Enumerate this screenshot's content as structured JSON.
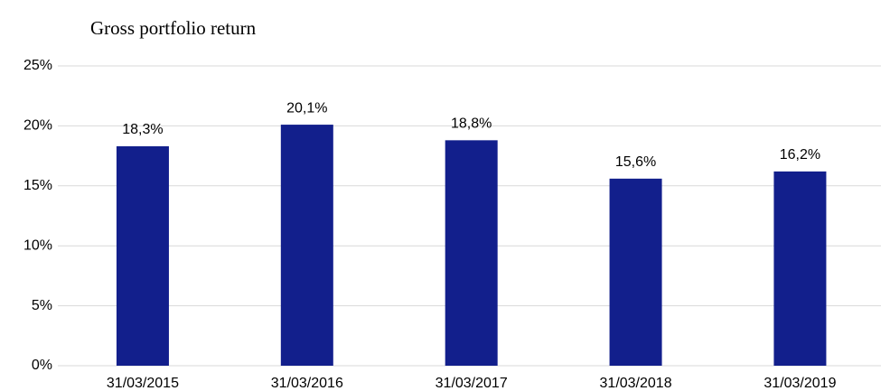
{
  "chart_data": {
    "type": "bar",
    "title": "Gross portfolio return",
    "categories": [
      "31/03/2015",
      "31/03/2016",
      "31/03/2017",
      "31/03/2018",
      "31/03/2019"
    ],
    "values": [
      18.3,
      20.1,
      18.8,
      15.6,
      16.2
    ],
    "value_labels": [
      "18,3%",
      "20,1%",
      "18,8%",
      "15,6%",
      "16,2%"
    ],
    "color": "#121f8c",
    "ylim": [
      0,
      25
    ],
    "yticks": [
      {
        "value": 0,
        "label": "0%"
      },
      {
        "value": 5,
        "label": "5%"
      },
      {
        "value": 10,
        "label": "10%"
      },
      {
        "value": 15,
        "label": "15%"
      },
      {
        "value": 20,
        "label": "20%"
      },
      {
        "value": 25,
        "label": "25%"
      }
    ],
    "grid": true
  }
}
